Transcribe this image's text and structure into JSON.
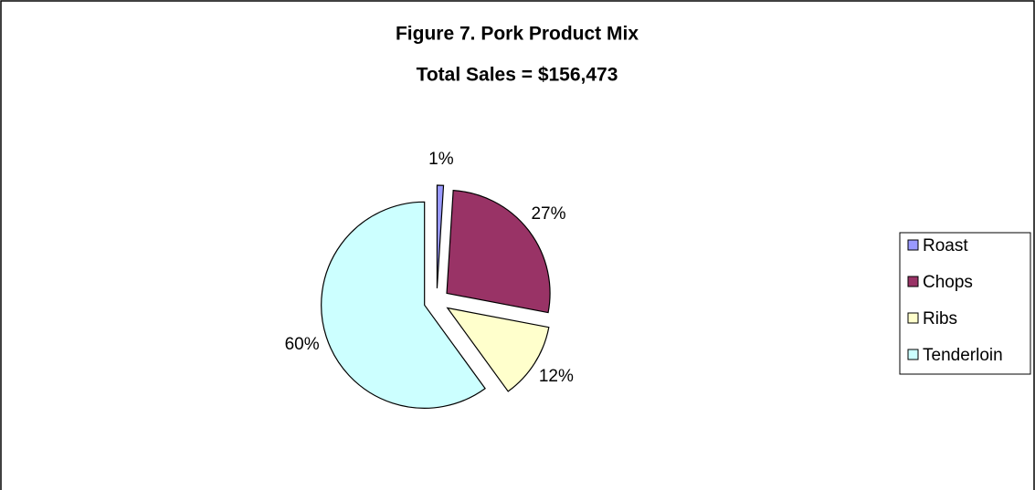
{
  "chart_data": {
    "type": "pie",
    "title": "Figure 7. Pork Product Mix",
    "subtitle": "Total Sales = $156,473",
    "categories": [
      "Roast",
      "Chops",
      "Ribs",
      "Tenderloin"
    ],
    "values": [
      1,
      27,
      12,
      60
    ],
    "value_labels": [
      "1%",
      "27%",
      "12%",
      "60%"
    ],
    "colors": [
      "#9999ff",
      "#993366",
      "#ffffcc",
      "#ccffff"
    ],
    "legend": "right"
  }
}
